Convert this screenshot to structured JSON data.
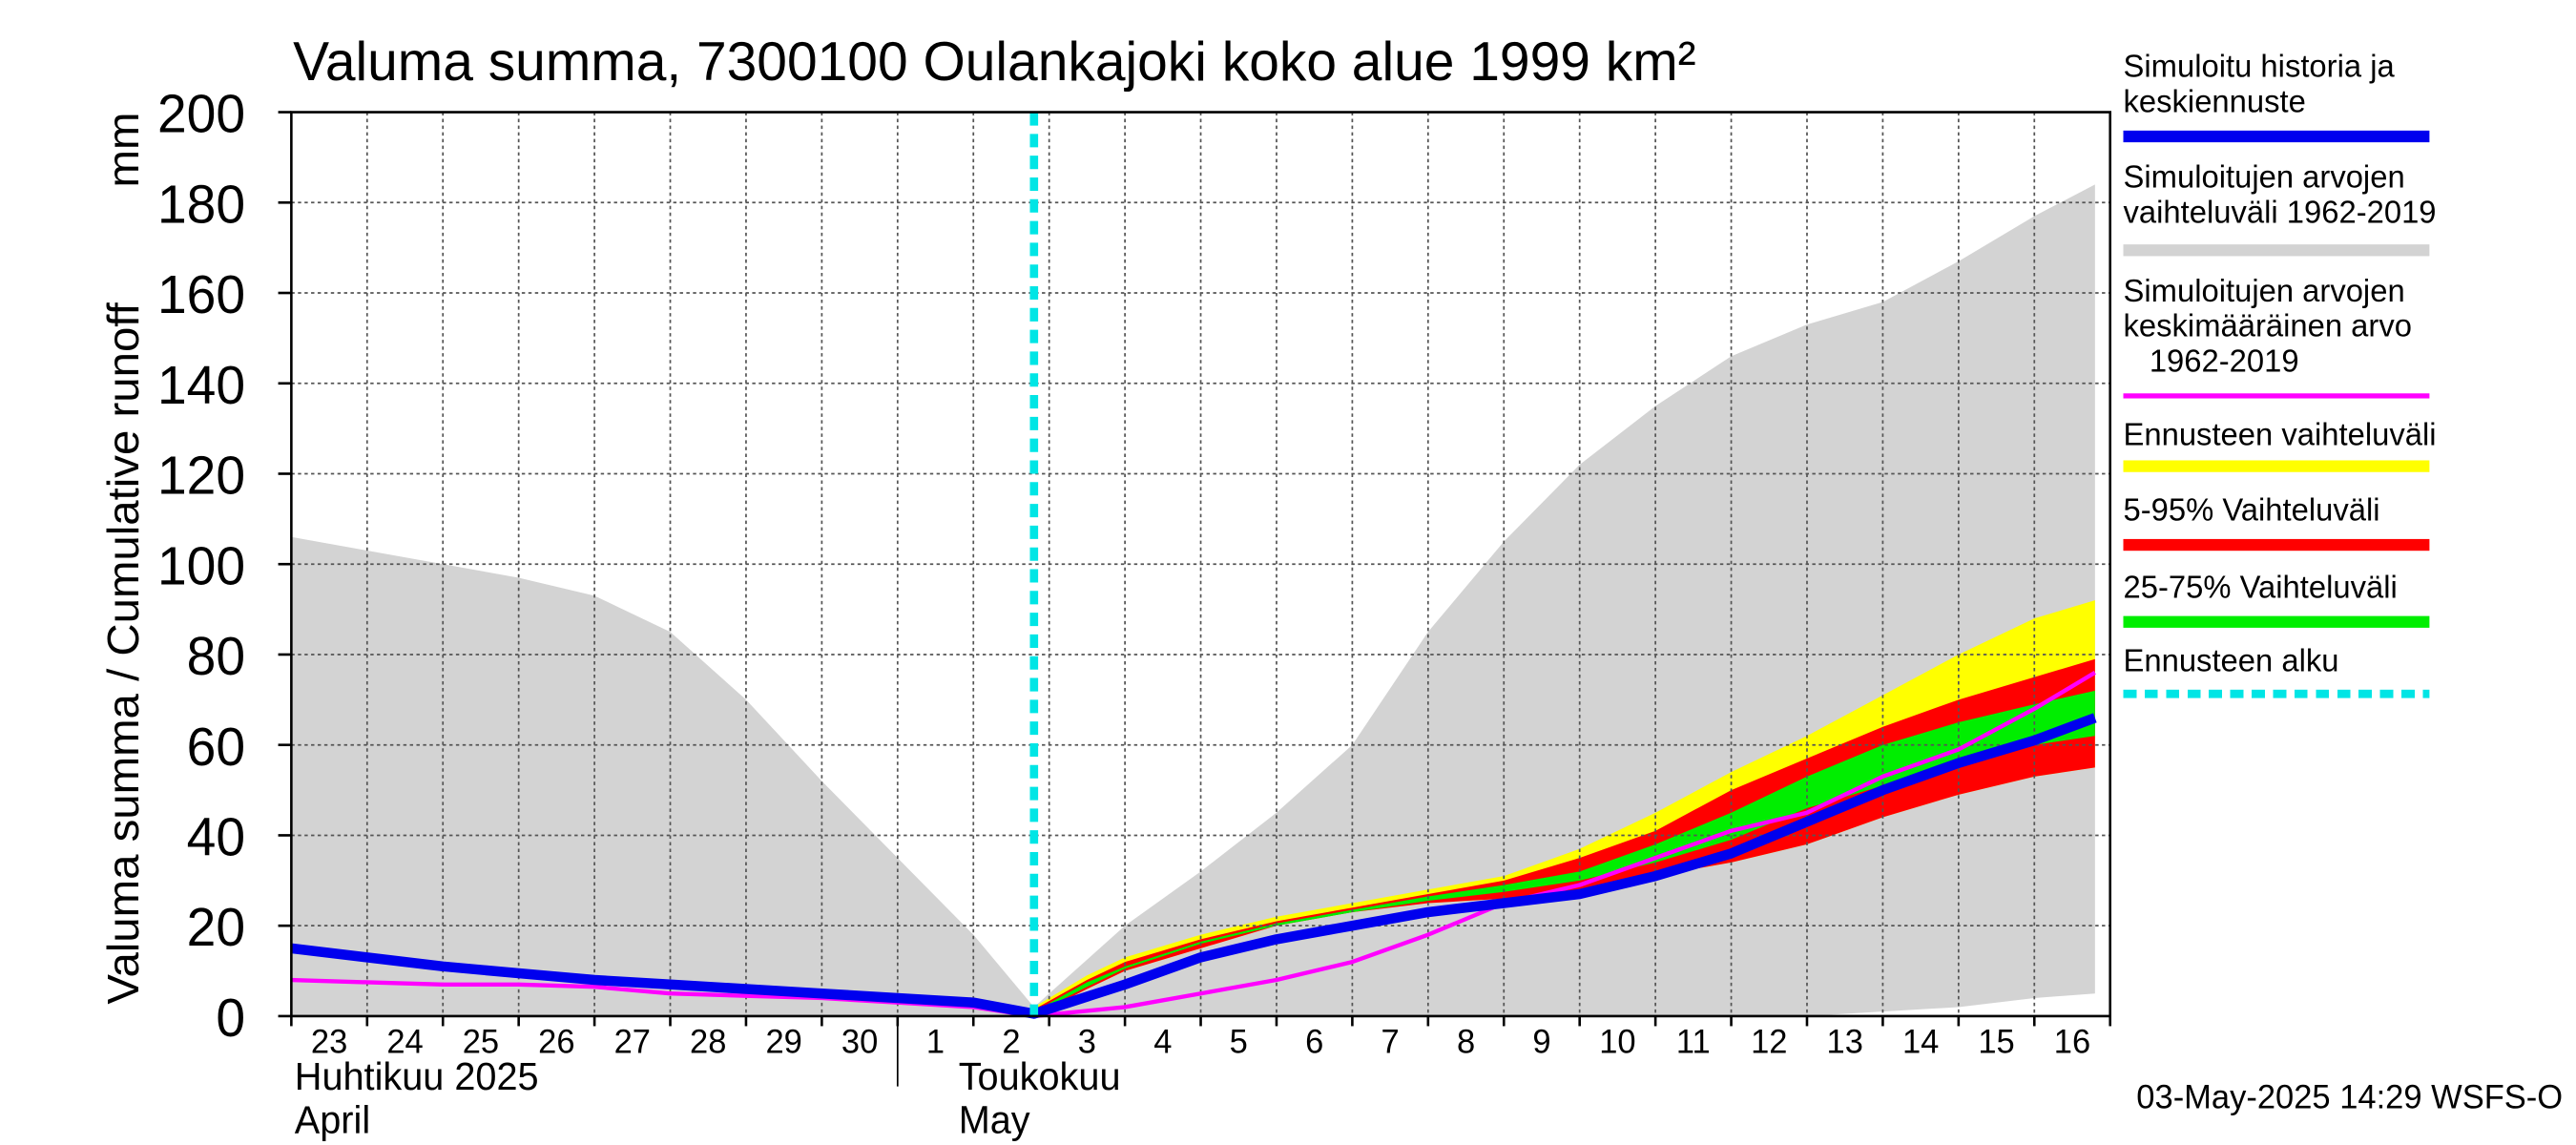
{
  "chart_data": {
    "type": "area",
    "title": "Valuma summa, 7300100 Oulankajoki koko alue 1999 km²",
    "ylabel": "Valuma summa / Cumulative runoff",
    "yunit": "mm",
    "ylim": [
      0,
      200
    ],
    "yticks": [
      0,
      20,
      40,
      60,
      80,
      100,
      120,
      140,
      160,
      180,
      200
    ],
    "x_days": [
      "23",
      "24",
      "25",
      "26",
      "27",
      "28",
      "29",
      "30",
      "1",
      "2",
      "3",
      "4",
      "5",
      "6",
      "7",
      "8",
      "9",
      "10",
      "11",
      "12",
      "13",
      "14",
      "15",
      "16"
    ],
    "month_labels": [
      {
        "fi": "Huhtikuu  2025",
        "en": "April"
      },
      {
        "fi": "Toukokuu",
        "en": "May"
      }
    ],
    "forecast_start_day_index": 9.8,
    "series": [
      {
        "name": "Simuloitujen arvojen vaihteluväli 1962-2019",
        "kind": "band",
        "color": "#d3d3d3",
        "x": [
          0,
          1,
          2,
          3,
          4,
          5,
          6,
          7,
          8,
          9,
          9.8,
          11,
          12,
          13,
          14,
          15,
          16,
          17,
          18,
          19,
          20,
          21,
          22,
          23,
          23.8
        ],
        "upper": [
          106,
          103,
          100,
          97,
          93,
          85,
          70,
          52,
          35,
          18,
          2,
          20,
          32,
          45,
          60,
          85,
          105,
          122,
          135,
          146,
          153,
          158,
          167,
          177,
          184
        ],
        "lower": [
          0,
          0,
          0,
          0,
          0,
          0,
          0,
          0,
          0,
          0,
          0,
          0,
          0,
          0,
          0,
          0,
          0,
          0,
          0,
          0,
          0,
          1,
          2,
          4,
          5
        ]
      },
      {
        "name": "Ennusteen vaihteluväli",
        "kind": "band",
        "color": "#ffff00",
        "x": [
          9.8,
          10.5,
          11,
          12,
          13,
          14,
          15,
          16,
          17,
          18,
          19,
          20,
          21,
          22,
          23,
          23.8
        ],
        "upper": [
          2,
          9,
          13,
          18,
          22,
          25,
          28,
          31,
          37,
          45,
          54,
          62,
          71,
          80,
          88,
          92
        ],
        "lower": [
          0,
          6,
          10,
          15,
          20,
          23,
          25,
          26,
          28,
          31,
          34,
          38,
          44,
          49,
          53,
          55
        ]
      },
      {
        "name": "5-95% Vaihteluväli",
        "kind": "band",
        "color": "#ff0000",
        "x": [
          9.8,
          10.5,
          11,
          12,
          13,
          14,
          15,
          16,
          17,
          18,
          19,
          20,
          21,
          22,
          23,
          23.8
        ],
        "upper": [
          1.5,
          8,
          12,
          17,
          21,
          24,
          27,
          30,
          35,
          41,
          50,
          57,
          64,
          70,
          75,
          79
        ],
        "lower": [
          0,
          6,
          10,
          15,
          20,
          23,
          25,
          26,
          28,
          31,
          34,
          38,
          44,
          49,
          53,
          55
        ]
      },
      {
        "name": "25-75% Vaihteluväli",
        "kind": "band",
        "color": "#00ee00",
        "x": [
          9.8,
          10.5,
          11,
          12,
          13,
          14,
          15,
          16,
          17,
          18,
          19,
          20,
          21,
          22,
          23,
          23.8
        ],
        "upper": [
          1,
          7.5,
          11,
          16.5,
          20.5,
          23.5,
          26.5,
          29,
          32,
          38,
          45,
          53,
          60,
          65,
          69,
          72
        ],
        "lower": [
          0.5,
          6.5,
          10.5,
          16,
          20,
          23,
          25.5,
          27.5,
          30,
          34,
          39,
          46,
          51,
          56,
          60,
          62
        ]
      },
      {
        "name": "Simuloitujen arvojen keskimääräinen arvo 1962-2019",
        "kind": "line",
        "color": "#ff00ff",
        "x": [
          0,
          1,
          2,
          3,
          4,
          5,
          6,
          7,
          8,
          9,
          9.8,
          11,
          12,
          13,
          14,
          15,
          16,
          17,
          18,
          19,
          20,
          21,
          22,
          23,
          23.8
        ],
        "y": [
          8,
          7.5,
          7,
          7,
          6.5,
          5,
          4.5,
          4,
          3,
          2,
          0,
          2,
          5,
          8,
          12,
          18,
          25,
          29,
          35,
          41,
          45,
          53,
          59,
          68,
          76
        ]
      },
      {
        "name": "Simuloitu historia ja keskiennuste",
        "kind": "line",
        "color": "#0000ee",
        "x": [
          0,
          1,
          2,
          3,
          4,
          5,
          6,
          7,
          8,
          9,
          9.8,
          11,
          12,
          13,
          14,
          15,
          16,
          17,
          18,
          19,
          20,
          21,
          22,
          23,
          23.8
        ],
        "y": [
          15,
          13,
          11,
          9.5,
          8,
          7,
          6,
          5,
          4,
          3,
          0.5,
          7,
          13,
          17,
          20,
          23,
          25,
          27,
          31,
          36,
          43,
          50,
          56,
          61,
          66
        ]
      }
    ]
  },
  "legend": [
    {
      "label": "Simuloitu historia ja\nkeskiennuste",
      "color": "#0000ee",
      "style": "line"
    },
    {
      "label": "Simuloitujen arvojen\nvaihteluväli 1962-2019",
      "color": "#d3d3d3",
      "style": "line"
    },
    {
      "label": "Simuloitujen arvojen\nkeskimääräinen arvo\n   1962-2019",
      "color": "#ff00ff",
      "style": "thin"
    },
    {
      "label": "Ennusteen vaihteluväli",
      "color": "#ffff00",
      "style": "line"
    },
    {
      "label": "5-95% Vaihteluväli",
      "color": "#ff0000",
      "style": "line"
    },
    {
      "label": "25-75% Vaihteluväli",
      "color": "#00ee00",
      "style": "line"
    },
    {
      "label": "Ennusteen alku",
      "color": "#00e5e5",
      "style": "dashed"
    }
  ],
  "footer": "03-May-2025 14:29 WSFS-O"
}
